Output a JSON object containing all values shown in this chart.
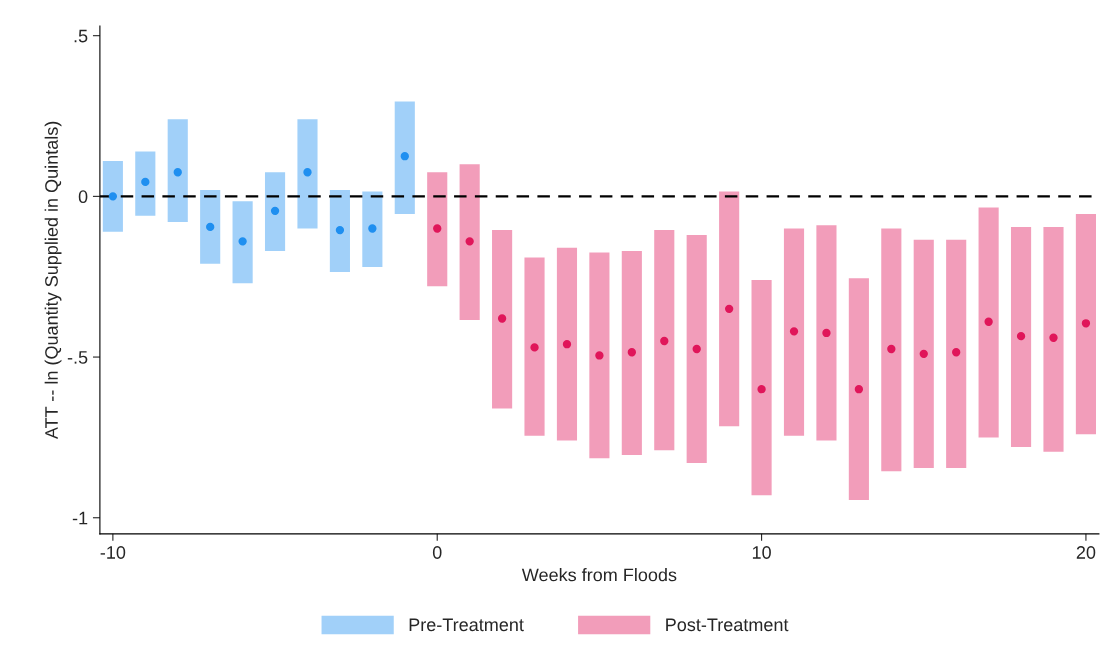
{
  "chart_data": {
    "type": "scatter",
    "xlabel": "Weeks from Floods",
    "ylabel": "ATT -- ln (Quantity Supplied in Quintals)",
    "xlim": [
      -10.4,
      20.4
    ],
    "xticks": [
      -10,
      0,
      10,
      20
    ],
    "ylim": [
      -1.05,
      0.53
    ],
    "yticks": [
      {
        "value": 0.5,
        "label": ".5"
      },
      0,
      {
        "value": -0.5,
        "label": "-.5"
      },
      -1
    ],
    "grid": false,
    "legend": "bottom",
    "marker": "circle",
    "ref_lines": [
      {
        "axis": "y",
        "value": 0,
        "color": "#000000",
        "line_style": "dashed"
      }
    ],
    "series": [
      {
        "name": "Pre-Treatment",
        "color": "#1f8ff0",
        "x": [
          -10,
          -9,
          -8,
          -7,
          -6,
          -5,
          -4,
          -3,
          -2,
          -1
        ],
        "values": [
          0.0,
          0.045,
          0.075,
          -0.095,
          -0.14,
          -0.045,
          0.075,
          -0.105,
          -0.1,
          0.125
        ],
        "errors": [
          [
            -0.11,
            0.11
          ],
          [
            -0.06,
            0.14
          ],
          [
            -0.08,
            0.24
          ],
          [
            -0.21,
            0.02
          ],
          [
            -0.27,
            -0.015
          ],
          [
            -0.17,
            0.075
          ],
          [
            -0.1,
            0.24
          ],
          [
            -0.235,
            0.02
          ],
          [
            -0.22,
            0.015
          ],
          [
            -0.055,
            0.295
          ]
        ]
      },
      {
        "name": "Post-Treatment",
        "color": "#e0165a",
        "x": [
          0,
          1,
          2,
          3,
          4,
          5,
          6,
          7,
          8,
          9,
          10,
          11,
          12,
          13,
          14,
          15,
          16,
          17,
          18,
          19,
          20
        ],
        "values": [
          -0.1,
          -0.14,
          -0.38,
          -0.47,
          -0.46,
          -0.495,
          -0.485,
          -0.45,
          -0.475,
          -0.35,
          -0.6,
          -0.42,
          -0.425,
          -0.6,
          -0.475,
          -0.49,
          -0.485,
          -0.39,
          -0.435,
          -0.44,
          -0.395
        ],
        "errors": [
          [
            -0.28,
            0.075
          ],
          [
            -0.385,
            0.1
          ],
          [
            -0.66,
            -0.105
          ],
          [
            -0.745,
            -0.19
          ],
          [
            -0.76,
            -0.16
          ],
          [
            -0.815,
            -0.175
          ],
          [
            -0.805,
            -0.17
          ],
          [
            -0.79,
            -0.105
          ],
          [
            -0.83,
            -0.12
          ],
          [
            -0.715,
            0.015
          ],
          [
            -0.93,
            -0.26
          ],
          [
            -0.745,
            -0.1
          ],
          [
            -0.76,
            -0.09
          ],
          [
            -0.945,
            -0.255
          ],
          [
            -0.855,
            -0.1
          ],
          [
            -0.845,
            -0.135
          ],
          [
            -0.845,
            -0.135
          ],
          [
            -0.75,
            -0.035
          ],
          [
            -0.78,
            -0.095
          ],
          [
            -0.795,
            -0.095
          ],
          [
            -0.74,
            -0.055
          ]
        ]
      }
    ]
  }
}
